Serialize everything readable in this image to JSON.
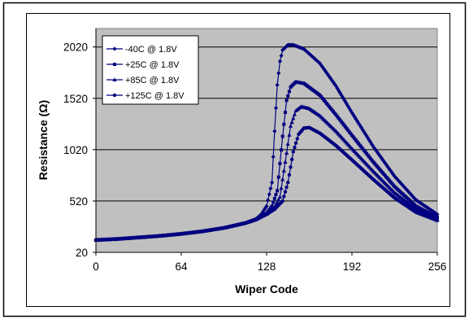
{
  "chart_data": {
    "type": "line",
    "title": "",
    "xlabel": "Wiper Code",
    "ylabel": "Resistance (Ω)",
    "xlim": [
      0,
      256
    ],
    "ylim": [
      20,
      2200
    ],
    "x_ticks": [
      0,
      64,
      128,
      192,
      256
    ],
    "y_ticks": [
      20,
      520,
      1020,
      1520,
      2020
    ],
    "grid": "horizontal",
    "legend_position": "top-left",
    "plot_background": "#c0c0c0",
    "series_color": "#000080",
    "series": [
      {
        "name": "-40C @ 1.8V",
        "marker": "diamond",
        "points": [
          [
            0,
            140
          ],
          [
            16,
            150
          ],
          [
            32,
            165
          ],
          [
            48,
            180
          ],
          [
            64,
            200
          ],
          [
            80,
            225
          ],
          [
            96,
            258
          ],
          [
            112,
            305
          ],
          [
            120,
            345
          ],
          [
            124,
            390
          ],
          [
            128,
            470
          ],
          [
            132,
            700
          ],
          [
            134,
            1200
          ],
          [
            136,
            1650
          ],
          [
            138,
            1880
          ],
          [
            140,
            1990
          ],
          [
            144,
            2040
          ],
          [
            148,
            2040
          ],
          [
            156,
            2000
          ],
          [
            168,
            1860
          ],
          [
            180,
            1640
          ],
          [
            192,
            1380
          ],
          [
            208,
            1050
          ],
          [
            224,
            760
          ],
          [
            240,
            530
          ],
          [
            256,
            390
          ]
        ]
      },
      {
        "name": "+25C @ 1.8V",
        "marker": "square",
        "points": [
          [
            0,
            140
          ],
          [
            16,
            150
          ],
          [
            32,
            165
          ],
          [
            48,
            180
          ],
          [
            64,
            200
          ],
          [
            80,
            225
          ],
          [
            96,
            258
          ],
          [
            112,
            305
          ],
          [
            120,
            340
          ],
          [
            128,
            400
          ],
          [
            132,
            470
          ],
          [
            136,
            620
          ],
          [
            140,
            1150
          ],
          [
            143,
            1500
          ],
          [
            146,
            1630
          ],
          [
            150,
            1680
          ],
          [
            156,
            1665
          ],
          [
            168,
            1550
          ],
          [
            180,
            1360
          ],
          [
            192,
            1160
          ],
          [
            208,
            900
          ],
          [
            224,
            660
          ],
          [
            240,
            470
          ],
          [
            256,
            360
          ]
        ]
      },
      {
        "name": "+85C @ 1.8V",
        "marker": "triangle",
        "points": [
          [
            0,
            140
          ],
          [
            16,
            150
          ],
          [
            32,
            165
          ],
          [
            48,
            180
          ],
          [
            64,
            200
          ],
          [
            80,
            225
          ],
          [
            96,
            258
          ],
          [
            112,
            305
          ],
          [
            120,
            340
          ],
          [
            128,
            395
          ],
          [
            134,
            460
          ],
          [
            138,
            560
          ],
          [
            142,
            900
          ],
          [
            146,
            1250
          ],
          [
            150,
            1400
          ],
          [
            154,
            1440
          ],
          [
            160,
            1420
          ],
          [
            168,
            1350
          ],
          [
            180,
            1200
          ],
          [
            192,
            1030
          ],
          [
            208,
            810
          ],
          [
            224,
            600
          ],
          [
            240,
            440
          ],
          [
            256,
            340
          ]
        ]
      },
      {
        "name": "+125C @ 1.8V",
        "marker": "circle",
        "points": [
          [
            0,
            140
          ],
          [
            16,
            150
          ],
          [
            32,
            165
          ],
          [
            48,
            180
          ],
          [
            64,
            200
          ],
          [
            80,
            225
          ],
          [
            96,
            258
          ],
          [
            112,
            305
          ],
          [
            120,
            340
          ],
          [
            128,
            390
          ],
          [
            134,
            440
          ],
          [
            140,
            520
          ],
          [
            144,
            700
          ],
          [
            148,
            1000
          ],
          [
            152,
            1170
          ],
          [
            156,
            1230
          ],
          [
            160,
            1235
          ],
          [
            168,
            1180
          ],
          [
            180,
            1060
          ],
          [
            192,
            920
          ],
          [
            208,
            730
          ],
          [
            224,
            550
          ],
          [
            240,
            410
          ],
          [
            256,
            330
          ]
        ]
      }
    ]
  }
}
